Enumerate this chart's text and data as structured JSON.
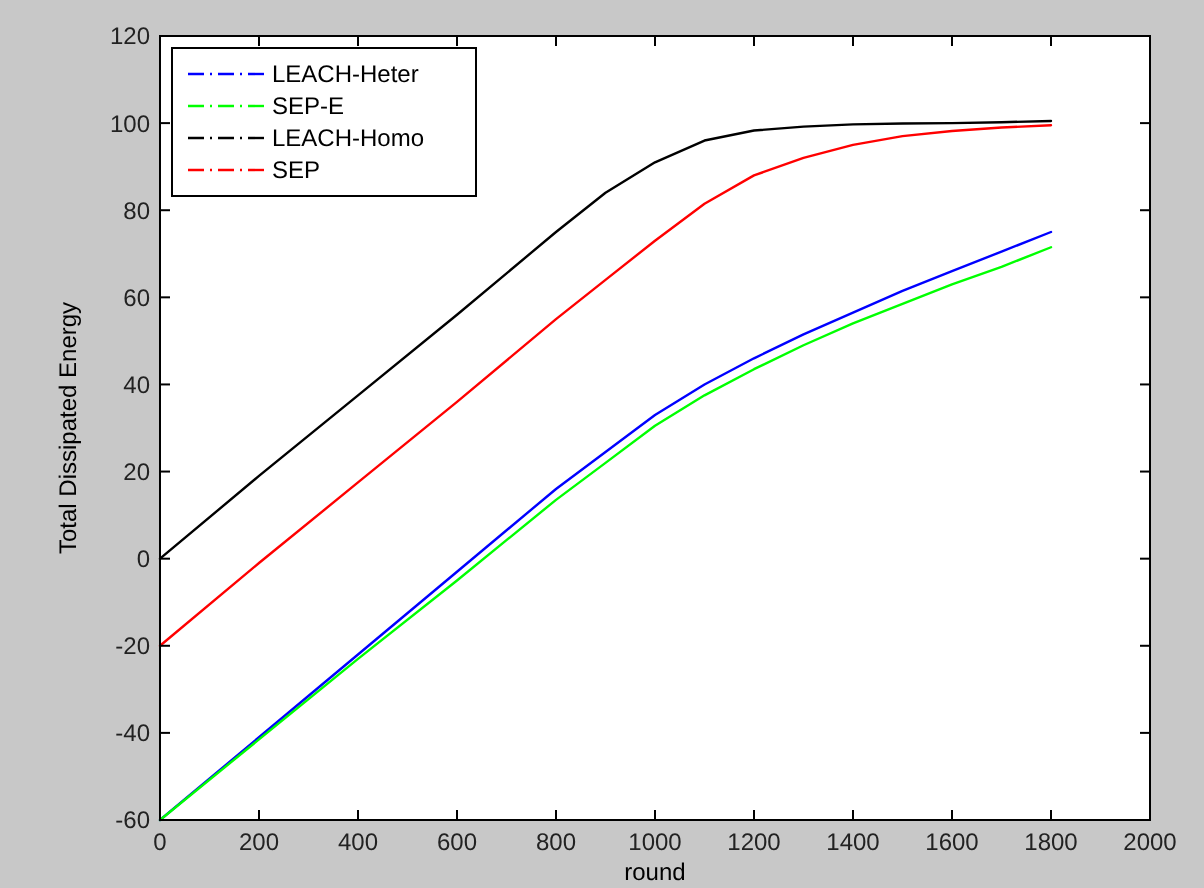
{
  "chart_data": {
    "type": "line",
    "xlabel": "round",
    "ylabel": "Total Dissipated Energy",
    "xlim": [
      0,
      2000
    ],
    "xticks": [
      0,
      200,
      400,
      600,
      800,
      1000,
      1200,
      1400,
      1600,
      1800,
      2000
    ],
    "ylim": [
      -60,
      120
    ],
    "yticks": [
      -60,
      -40,
      -20,
      0,
      20,
      40,
      60,
      80,
      100,
      120
    ],
    "grid": false,
    "legend": "top left",
    "marker": "none",
    "x": [
      0,
      200,
      400,
      600,
      800,
      900,
      1000,
      1100,
      1200,
      1300,
      1400,
      1500,
      1600,
      1700,
      1800
    ],
    "series": [
      {
        "name": "LEACH-Heter",
        "color": "#0000ff",
        "values": [
          -60,
          -41,
          -22,
          -3,
          16,
          24.5,
          33,
          40,
          46,
          51.5,
          56.5,
          61.5,
          66,
          70.5,
          75
        ]
      },
      {
        "name": "SEP-E",
        "color": "#00ff00",
        "values": [
          -60,
          -41.5,
          -23,
          -5,
          13.5,
          22,
          30.5,
          37.5,
          43.5,
          49,
          54,
          58.5,
          63,
          67,
          71.5
        ]
      },
      {
        "name": "LEACH-Homo",
        "color": "#000000",
        "values": [
          0,
          19,
          37.5,
          56,
          75,
          84,
          91,
          96,
          98.3,
          99.2,
          99.7,
          99.9,
          100,
          100.2,
          100.5
        ]
      },
      {
        "name": "SEP",
        "color": "#ff0000",
        "values": [
          -20,
          -1,
          17.5,
          36,
          55,
          64,
          73,
          81.5,
          88,
          92,
          95,
          97,
          98.2,
          99,
          99.5
        ]
      }
    ]
  }
}
